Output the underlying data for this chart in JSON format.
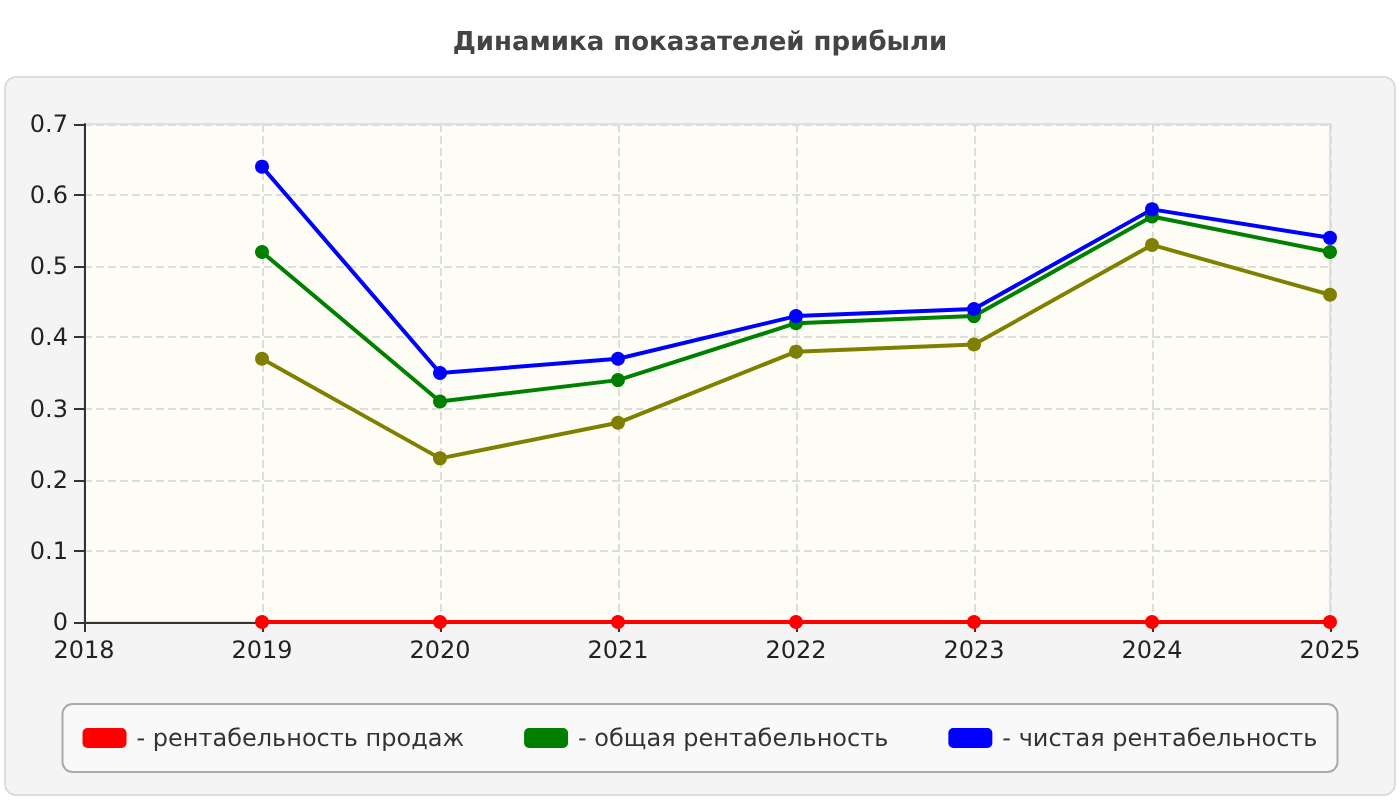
{
  "chart_data": {
    "type": "line",
    "title": "Динамика показателей прибыли",
    "x": [
      2019,
      2020,
      2021,
      2022,
      2023,
      2024,
      2025
    ],
    "xlim": [
      2018,
      2025
    ],
    "xticks": [
      2018,
      2019,
      2020,
      2021,
      2022,
      2023,
      2024,
      2025
    ],
    "ylim": [
      0,
      0.7
    ],
    "yticks": [
      0,
      0.1,
      0.2,
      0.3,
      0.4,
      0.5,
      0.6,
      0.7
    ],
    "grid": true,
    "legend": "bottom",
    "marker": "circle",
    "line_style": "solid",
    "series": [
      {
        "name": "- рентабельность продаж",
        "color": "#ff0000",
        "values": [
          0,
          0,
          0,
          0,
          0,
          0,
          0
        ]
      },
      {
        "name": "- общая рентабельность",
        "color": "#008000",
        "values": [
          0.52,
          0.31,
          0.34,
          0.42,
          0.43,
          0.57,
          0.52
        ]
      },
      {
        "name": "- чистая рентабельность",
        "color": "#0000ff",
        "values": [
          0.64,
          0.35,
          0.37,
          0.43,
          0.44,
          0.58,
          0.54
        ]
      },
      {
        "color": "#808000",
        "values": [
          0.37,
          0.23,
          0.28,
          0.38,
          0.39,
          0.53,
          0.46
        ]
      }
    ]
  }
}
